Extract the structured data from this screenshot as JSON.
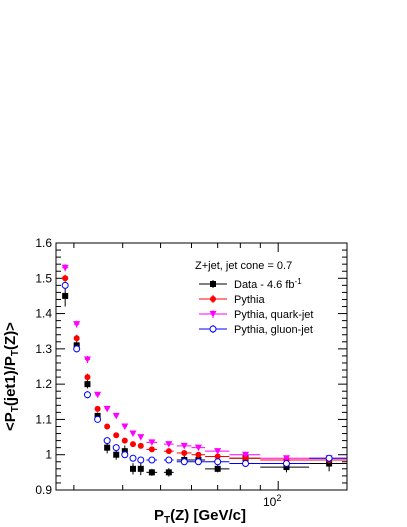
{
  "chart_data": {
    "type": "scatter",
    "title": "",
    "xlabel": "P_T(Z) [GeV/c]",
    "ylabel": "<P_T(jet1)/P_T(Z)>",
    "xscale": "log",
    "xlim": [
      27,
      150
    ],
    "ylim": [
      0.9,
      1.6
    ],
    "yticks": [
      0.9,
      1.0,
      1.1,
      1.2,
      1.3,
      1.4,
      1.5,
      1.6
    ],
    "ytick_labels": [
      "0.9",
      "1",
      "1.1",
      "1.2",
      "1.3",
      "1.4",
      "1.5",
      "1.6"
    ],
    "xtick_labels": [
      {
        "value": 100,
        "base": "10",
        "exp": "2"
      }
    ],
    "legend": {
      "header": "Z+jet, jet cone = 0.7",
      "placement": "top-right",
      "entries": [
        {
          "series": "data",
          "label": "Data - 4.6 fb",
          "sup": "-1"
        },
        {
          "series": "pythia",
          "label": "Pythia"
        },
        {
          "series": "quark",
          "label": "Pythia, quark-jet"
        },
        {
          "series": "gluon",
          "label": "Pythia, gluon-jet"
        }
      ]
    },
    "series": [
      {
        "id": "data",
        "color": "#000000",
        "marker": "filled-square",
        "points": [
          [
            28.5,
            1.45,
            0.5,
            0.03
          ],
          [
            30.5,
            1.31,
            0.5,
            0.012
          ],
          [
            32.5,
            1.2,
            0.5,
            0.012
          ],
          [
            34.5,
            1.11,
            0.5,
            0.01
          ],
          [
            36.5,
            1.02,
            0.5,
            0.016
          ],
          [
            38.5,
            1.0,
            0.5,
            0.014
          ],
          [
            40.5,
            1.01,
            0.5,
            0.016
          ],
          [
            42.5,
            0.96,
            0.5,
            0.016
          ],
          [
            44.5,
            0.96,
            0.5,
            0.018
          ],
          [
            47.5,
            0.95,
            1.5,
            0.01
          ],
          [
            52.5,
            0.95,
            1.5,
            0.012
          ],
          [
            57.5,
            0.985,
            2.5,
            0.012
          ],
          [
            62.5,
            0.985,
            2.5,
            0.012
          ],
          [
            70,
            0.96,
            5,
            0.01
          ],
          [
            82.5,
            0.99,
            7.5,
            0.012
          ],
          [
            105,
            0.965,
            15,
            0.015
          ],
          [
            135,
            0.975,
            15,
            0.022
          ]
        ]
      },
      {
        "id": "pythia",
        "color": "#ff0000",
        "marker": "filled-circle",
        "points": [
          [
            28.5,
            1.5,
            0.5,
            0.01
          ],
          [
            30.5,
            1.33,
            0.5,
            0.01
          ],
          [
            32.5,
            1.22,
            0.5,
            0.01
          ],
          [
            34.5,
            1.13,
            0.5,
            0.008
          ],
          [
            36.5,
            1.08,
            0.5,
            0.006
          ],
          [
            38.5,
            1.055,
            0.5,
            0.006
          ],
          [
            40.5,
            1.04,
            0.5,
            0.006
          ],
          [
            42.5,
            1.03,
            0.5,
            0.005
          ],
          [
            44.5,
            1.025,
            0.5,
            0.005
          ],
          [
            47.5,
            1.015,
            1.5,
            0.004
          ],
          [
            52.5,
            1.01,
            1.5,
            0.004
          ],
          [
            57.5,
            1.005,
            2.5,
            0.004
          ],
          [
            62.5,
            1.0,
            2.5,
            0.004
          ],
          [
            70,
            0.995,
            5,
            0.004
          ],
          [
            82.5,
            0.99,
            7.5,
            0.004
          ],
          [
            105,
            0.985,
            15,
            0.004
          ],
          [
            135,
            0.985,
            15,
            0.005
          ]
        ]
      },
      {
        "id": "quark",
        "color": "#ff00ff",
        "marker": "filled-triangle-down",
        "points": [
          [
            28.5,
            1.53,
            0.5,
            0.01
          ],
          [
            30.5,
            1.37,
            0.5,
            0.01
          ],
          [
            32.5,
            1.27,
            0.5,
            0.01
          ],
          [
            34.5,
            1.17,
            0.5,
            0.008
          ],
          [
            36.5,
            1.13,
            0.5,
            0.007
          ],
          [
            38.5,
            1.11,
            0.5,
            0.006
          ],
          [
            40.5,
            1.08,
            0.5,
            0.006
          ],
          [
            42.5,
            1.06,
            0.5,
            0.006
          ],
          [
            44.5,
            1.05,
            0.5,
            0.005
          ],
          [
            47.5,
            1.035,
            1.5,
            0.005
          ],
          [
            52.5,
            1.03,
            1.5,
            0.005
          ],
          [
            57.5,
            1.025,
            2.5,
            0.005
          ],
          [
            62.5,
            1.02,
            2.5,
            0.004
          ],
          [
            70,
            1.01,
            5,
            0.004
          ],
          [
            82.5,
            1.0,
            7.5,
            0.004
          ],
          [
            105,
            0.99,
            15,
            0.004
          ],
          [
            135,
            0.99,
            15,
            0.005
          ]
        ]
      },
      {
        "id": "gluon",
        "color": "#0000ff",
        "marker": "open-circle",
        "points": [
          [
            28.5,
            1.48,
            0.5,
            0.01
          ],
          [
            30.5,
            1.3,
            0.5,
            0.01
          ],
          [
            32.5,
            1.17,
            0.5,
            0.01
          ],
          [
            34.5,
            1.1,
            0.5,
            0.008
          ],
          [
            36.5,
            1.04,
            0.5,
            0.007
          ],
          [
            38.5,
            1.02,
            0.5,
            0.006
          ],
          [
            40.5,
            1.0,
            0.5,
            0.006
          ],
          [
            42.5,
            0.99,
            0.5,
            0.006
          ],
          [
            44.5,
            0.985,
            0.5,
            0.005
          ],
          [
            47.5,
            0.985,
            1.5,
            0.005
          ],
          [
            52.5,
            0.985,
            1.5,
            0.005
          ],
          [
            57.5,
            0.98,
            2.5,
            0.005
          ],
          [
            62.5,
            0.98,
            2.5,
            0.004
          ],
          [
            70,
            0.98,
            5,
            0.004
          ],
          [
            82.5,
            0.975,
            7.5,
            0.004
          ],
          [
            105,
            0.975,
            15,
            0.004
          ],
          [
            135,
            0.99,
            15,
            0.005
          ]
        ]
      }
    ]
  }
}
